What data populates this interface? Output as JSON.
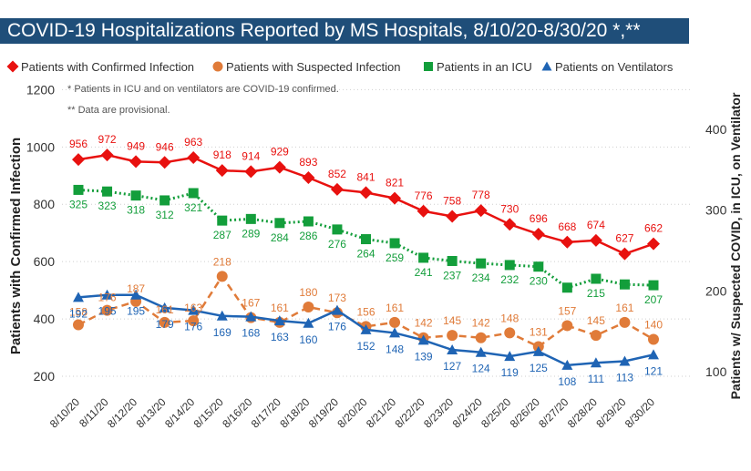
{
  "title": "COVID-19 Hospitalizations Reported by MS Hospitals, 8/10/20-8/30/20 *,**",
  "notes": [
    "* Patients in ICU and on ventilators are COVID-19 confirmed.",
    "** Data are provisional."
  ],
  "chart_data": {
    "type": "line",
    "x": [
      "8/10/20",
      "8/11/20",
      "8/12/20",
      "8/13/20",
      "8/14/20",
      "8/15/20",
      "8/16/20",
      "8/17/20",
      "8/18/20",
      "8/19/20",
      "8/20/20",
      "8/21/20",
      "8/22/20",
      "8/23/20",
      "8/24/20",
      "8/25/20",
      "8/26/20",
      "8/27/20",
      "8/28/20",
      "8/29/20",
      "8/30/20"
    ],
    "ylabel_left": "Patients with Confirmed Infection",
    "ylabel_right": "Patients w/ Suspected COVID, in ICU, on Ventilator",
    "ylim_left": [
      200,
      1200
    ],
    "yticks_left": [
      "200",
      "400",
      "600",
      "800",
      "1000",
      "1200"
    ],
    "ylim_right": [
      100,
      400
    ],
    "yticks_right": [
      "100",
      "200",
      "300",
      "400"
    ],
    "legend_position": "top",
    "series": [
      {
        "name": "Patients with Confirmed Infection",
        "axis": "left",
        "color": "#e8110f",
        "marker": "diamond",
        "style": "solid",
        "values": [
          956,
          972,
          949,
          946,
          963,
          918,
          914,
          929,
          893,
          852,
          841,
          821,
          776,
          758,
          778,
          730,
          696,
          668,
          674,
          627,
          662
        ]
      },
      {
        "name": "Patients with Suspected Infection",
        "axis": "right",
        "color": "#e07b39",
        "marker": "circle",
        "style": "dashed",
        "values": [
          158,
          176,
          187,
          161,
          163,
          218,
          167,
          161,
          180,
          173,
          156,
          161,
          142,
          145,
          142,
          148,
          131,
          157,
          145,
          161,
          140
        ]
      },
      {
        "name": "Patients in an ICU",
        "axis": "right",
        "color": "#139e3b",
        "marker": "square",
        "style": "dotted",
        "values": [
          325,
          323,
          318,
          312,
          321,
          287,
          289,
          284,
          286,
          276,
          264,
          259,
          241,
          237,
          234,
          232,
          230,
          "",
          215,
          "",
          207
        ]
      },
      {
        "name": "Patients on Ventilators",
        "axis": "right",
        "color": "#1f64b4",
        "marker": "triangle",
        "style": "solid",
        "values": [
          192,
          195,
          195,
          179,
          176,
          169,
          168,
          163,
          160,
          176,
          152,
          148,
          139,
          127,
          124,
          119,
          125,
          108,
          111,
          113,
          121
        ]
      }
    ]
  }
}
